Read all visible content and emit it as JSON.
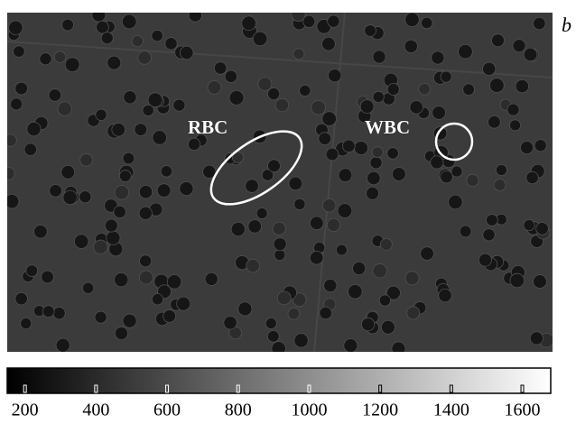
{
  "panel_label": "b",
  "annotations": [
    {
      "label": "RBC"
    },
    {
      "label": "WBC"
    }
  ],
  "colorbar": {
    "lim": [
      150,
      1680
    ],
    "ticks": [
      200,
      400,
      600,
      800,
      1000,
      1200,
      1400,
      1600
    ]
  }
}
